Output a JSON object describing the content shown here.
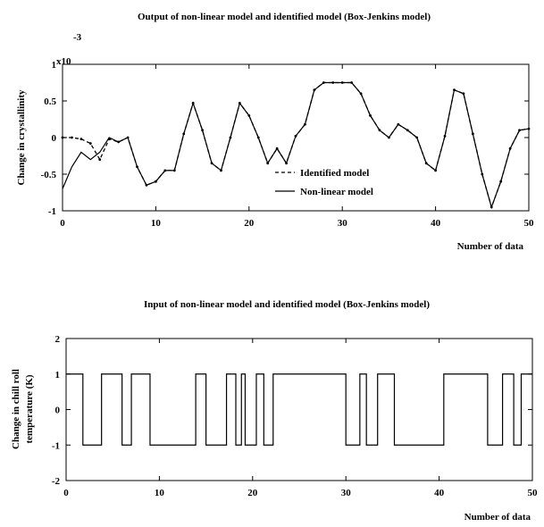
{
  "chart_data": [
    {
      "type": "line",
      "title": "Output of non-linear model and identified model (Box-Jenkins model)",
      "xlabel": "Number of data",
      "ylabel": "Change in crystallinity",
      "y_exponent": "x10",
      "y_exponent_power": "-3",
      "xlim": [
        0,
        50
      ],
      "ylim": [
        -1,
        1
      ],
      "xticks": [
        "0",
        "10",
        "20",
        "30",
        "40",
        "50"
      ],
      "yticks": [
        "1",
        "0.5",
        "0",
        "-0.5",
        "-1"
      ],
      "grid": false,
      "legend_position": "bottom-center",
      "series": [
        {
          "name": "Identified model",
          "style": "dashed",
          "color": "#000000",
          "x": [
            0,
            1,
            2,
            3,
            4,
            5,
            6,
            7,
            8,
            9,
            10,
            11,
            12,
            13,
            14,
            15,
            16,
            17,
            18,
            19,
            20,
            21,
            22,
            23,
            24,
            25,
            26,
            27,
            28,
            29,
            30,
            31,
            32,
            33,
            34,
            35,
            36,
            37,
            38,
            39,
            40,
            41,
            42,
            43,
            44,
            45,
            46,
            47,
            48,
            49,
            50
          ],
          "y": [
            0,
            0,
            -0.02,
            -0.08,
            -0.3,
            -0.02,
            -0.06,
            0,
            -0.4,
            -0.65,
            -0.6,
            -0.45,
            -0.45,
            0.05,
            0.47,
            0.1,
            -0.35,
            -0.45,
            0,
            0.47,
            0.3,
            0,
            -0.35,
            -0.15,
            -0.35,
            0.02,
            0.18,
            0.65,
            0.75,
            0.75,
            0.75,
            0.75,
            0.6,
            0.3,
            0.1,
            0,
            0.18,
            0.1,
            0,
            -0.35,
            -0.45,
            0.02,
            0.65,
            0.6,
            0.05,
            -0.5,
            -0.95,
            -0.6,
            -0.15,
            0.1,
            0.12
          ]
        },
        {
          "name": "Non-linear model",
          "style": "solid",
          "color": "#000000",
          "x": [
            0,
            1,
            2,
            3,
            4,
            5,
            6,
            7,
            8,
            9,
            10,
            11,
            12,
            13,
            14,
            15,
            16,
            17,
            18,
            19,
            20,
            21,
            22,
            23,
            24,
            25,
            26,
            27,
            28,
            29,
            30,
            31,
            32,
            33,
            34,
            35,
            36,
            37,
            38,
            39,
            40,
            41,
            42,
            43,
            44,
            45,
            46,
            47,
            48,
            49,
            50
          ],
          "y": [
            -0.7,
            -0.4,
            -0.2,
            -0.3,
            -0.2,
            0,
            -0.06,
            0,
            -0.4,
            -0.65,
            -0.6,
            -0.45,
            -0.45,
            0.05,
            0.47,
            0.1,
            -0.35,
            -0.45,
            0,
            0.47,
            0.3,
            0,
            -0.35,
            -0.15,
            -0.35,
            0.02,
            0.18,
            0.65,
            0.75,
            0.75,
            0.75,
            0.75,
            0.6,
            0.3,
            0.1,
            0,
            0.18,
            0.1,
            0,
            -0.35,
            -0.45,
            0.02,
            0.65,
            0.6,
            0.05,
            -0.5,
            -0.95,
            -0.6,
            -0.15,
            0.1,
            0.12
          ]
        }
      ]
    },
    {
      "type": "line",
      "title": "Input of non-linear model and identified model (Box-Jenkins model)",
      "xlabel": "Number of data",
      "ylabel_line1": "Change in chill roll",
      "ylabel_line2": "temperature (K)",
      "xlim": [
        0,
        50
      ],
      "ylim": [
        -2,
        2
      ],
      "xticks": [
        "0",
        "10",
        "20",
        "30",
        "40",
        "50"
      ],
      "yticks": [
        "2",
        "1",
        "0",
        "-1",
        "-2"
      ],
      "grid": false,
      "series": [
        {
          "style": "step",
          "color": "#000000",
          "x": [
            0,
            1.8,
            1.8,
            3.8,
            3.8,
            6,
            6,
            7,
            7,
            9,
            9,
            13.9,
            13.9,
            15,
            15,
            17.2,
            17.2,
            18.2,
            18.2,
            18.8,
            18.8,
            19.2,
            19.2,
            20.4,
            20.4,
            21.2,
            21.2,
            22.2,
            22.2,
            30,
            30,
            31.5,
            31.5,
            32.2,
            32.2,
            33.4,
            33.4,
            35.2,
            35.2,
            40.5,
            40.5,
            45.2,
            45.2,
            46.8,
            46.8,
            48,
            48,
            48.8,
            48.8,
            50
          ],
          "y": [
            1,
            1,
            -1,
            -1,
            1,
            1,
            -1,
            -1,
            1,
            1,
            -1,
            -1,
            1,
            1,
            -1,
            -1,
            1,
            1,
            -1,
            -1,
            1,
            1,
            -1,
            -1,
            1,
            1,
            -1,
            -1,
            1,
            1,
            -1,
            -1,
            1,
            1,
            -1,
            -1,
            1,
            1,
            -1,
            -1,
            1,
            1,
            -1,
            -1,
            1,
            1,
            -1,
            -1,
            1,
            1
          ]
        }
      ]
    }
  ]
}
